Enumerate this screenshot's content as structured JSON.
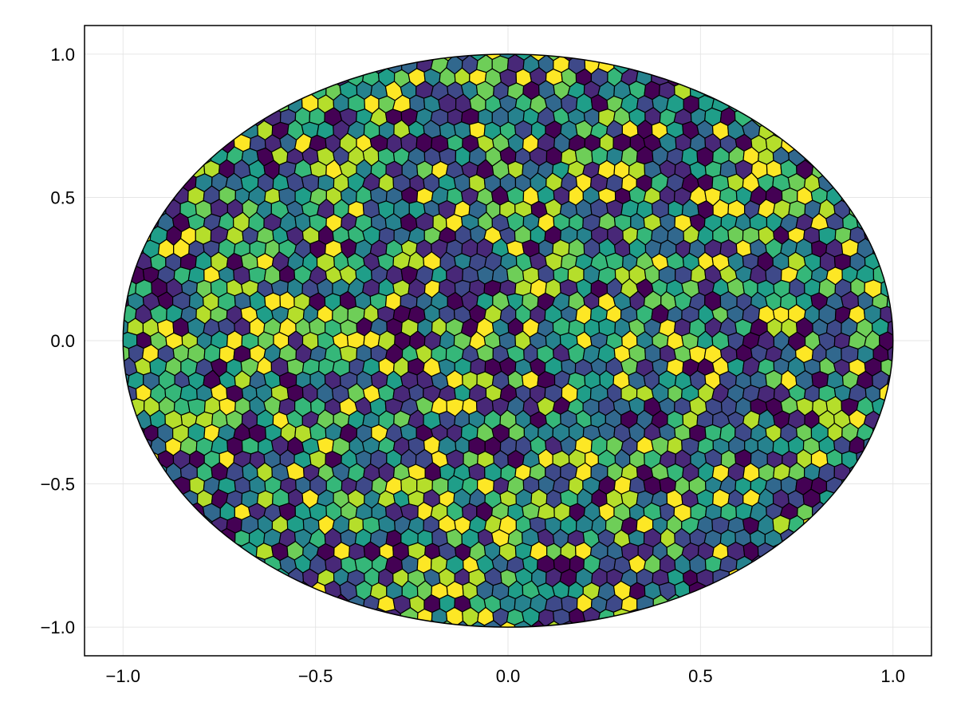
{
  "chart_data": {
    "type": "voronoi",
    "title": "",
    "xlabel": "",
    "ylabel": "",
    "xlim": [
      -1.1,
      1.1
    ],
    "ylim": [
      -1.1,
      1.1
    ],
    "x_ticks": [
      "−1.0",
      "−0.5",
      "0.0",
      "0.5",
      "1.0"
    ],
    "y_ticks": [
      "−1.0",
      "−0.5",
      "0.0",
      "0.5",
      "1.0"
    ],
    "x_tick_values": [
      -1.0,
      -0.5,
      0.0,
      0.5,
      1.0
    ],
    "y_tick_values": [
      -1.0,
      -0.5,
      0.0,
      0.5,
      1.0
    ],
    "grid": true,
    "domain_shape": "unit circle",
    "colormap": "viridis",
    "colormap_colors": [
      "#440154",
      "#482878",
      "#3e4989",
      "#31688e",
      "#26828e",
      "#1f9e89",
      "#35b779",
      "#6ece58",
      "#b5de2b",
      "#fde725"
    ],
    "cell_edge_color": "#000000"
  }
}
